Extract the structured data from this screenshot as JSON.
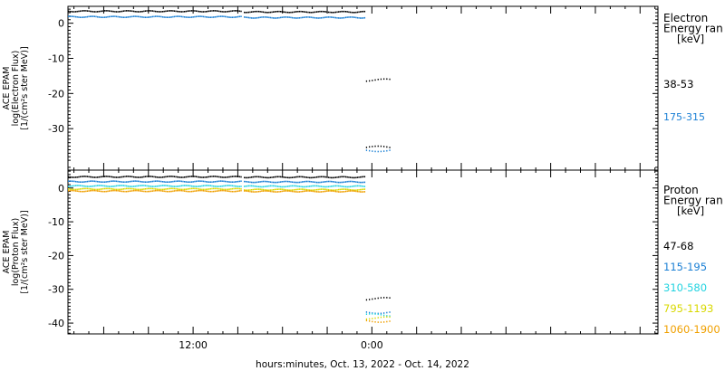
{
  "x_axis_title": "hours:minutes, Oct. 13, 2022 - Oct. 14, 2022",
  "chart_data": [
    {
      "type": "scatter",
      "panel": "electron",
      "ylabel": [
        "ACE EPAM",
        "log(Electron Flux)",
        "[1/(cm²s ster MeV)]"
      ],
      "ylim": [
        -41.8,
        4.8
      ],
      "yticks": [
        0,
        -10,
        -20,
        -30
      ],
      "xlim": [
        -20.4,
        19.2
      ],
      "x_unit": "hours relative to 0:00 Oct. 14, 2022",
      "xticks": [
        {
          "value": -12,
          "label": "12:00"
        },
        {
          "value": 0,
          "label": "0:00"
        }
      ],
      "legend_title": [
        "Electron",
        "Energy ran",
        "[keV]"
      ],
      "legend_placement": "right",
      "grid": false,
      "series": [
        {
          "name": "38-53",
          "color": "#000000",
          "segments": [
            {
              "x": [
                -20.4,
                -8.8
              ],
              "y": 3.4
            },
            {
              "x": [
                -8.6,
                -0.5
              ],
              "y": 3.2
            },
            {
              "x": [
                -0.4,
                1.2
              ],
              "y": -16.2
            },
            {
              "x": [
                -0.4,
                1.2
              ],
              "y": -35.3
            }
          ]
        },
        {
          "name": "175-315",
          "color": "#1a7fd4",
          "segments": [
            {
              "x": [
                -20.4,
                -8.8
              ],
              "y": 1.8
            },
            {
              "x": [
                -8.6,
                -0.5
              ],
              "y": 1.6
            },
            {
              "x": [
                -0.4,
                1.2
              ],
              "y": -36.2
            }
          ]
        }
      ]
    },
    {
      "type": "scatter",
      "panel": "proton",
      "ylabel": [
        "ACE EPAM",
        "log(Proton Flux)",
        "[1/(cm²s ster MeV)]"
      ],
      "ylim": [
        -43.2,
        5.3
      ],
      "yticks": [
        0,
        -10,
        -20,
        -30,
        -40
      ],
      "xlim": [
        -20.4,
        19.2
      ],
      "xticks": [
        {
          "value": -12,
          "label": "12:00"
        },
        {
          "value": 0,
          "label": "0:00"
        }
      ],
      "legend_title": [
        "Proton",
        "Energy ran",
        "[keV]"
      ],
      "legend_placement": "right",
      "grid": false,
      "series": [
        {
          "name": "47-68",
          "color": "#000000",
          "segments": [
            {
              "x": [
                -20.4,
                -8.8
              ],
              "y": 3.3
            },
            {
              "x": [
                -8.6,
                -0.5
              ],
              "y": 3.2
            },
            {
              "x": [
                -0.4,
                1.2
              ],
              "y": -32.8
            }
          ]
        },
        {
          "name": "115-195",
          "color": "#1a7fd4",
          "segments": [
            {
              "x": [
                -20.4,
                -8.8
              ],
              "y": 1.9
            },
            {
              "x": [
                -8.6,
                -0.5
              ],
              "y": 1.8
            },
            {
              "x": [
                -0.4,
                1.2
              ],
              "y": -36.8
            }
          ]
        },
        {
          "name": "310-580",
          "color": "#22d3e0",
          "segments": [
            {
              "x": [
                -20.4,
                -8.8
              ],
              "y": 0.6
            },
            {
              "x": [
                -8.6,
                -0.5
              ],
              "y": 0.5
            },
            {
              "x": [
                -0.4,
                1.2
              ],
              "y": -37.6
            }
          ]
        },
        {
          "name": "795-1193",
          "color": "#d8d800",
          "segments": [
            {
              "x": [
                -20.4,
                -8.8
              ],
              "y": -0.3
            },
            {
              "x": [
                -8.6,
                -0.5
              ],
              "y": -0.5
            },
            {
              "x": [
                -0.4,
                1.2
              ],
              "y": -38.5
            }
          ]
        },
        {
          "name": "1060-1900",
          "color": "#f0a000",
          "segments": [
            {
              "x": [
                -20.4,
                -8.8
              ],
              "y": -0.9
            },
            {
              "x": [
                -8.6,
                -0.5
              ],
              "y": -1.0
            },
            {
              "x": [
                -0.4,
                1.2
              ],
              "y": -39.4
            }
          ]
        }
      ]
    }
  ]
}
